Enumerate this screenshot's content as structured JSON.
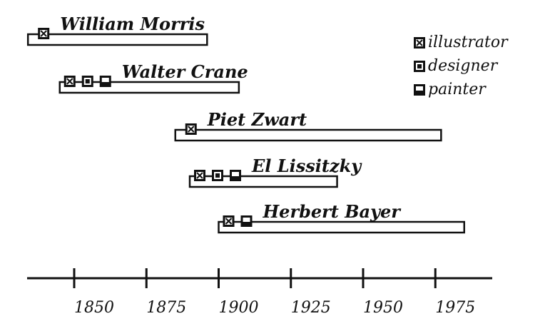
{
  "chart_data": {
    "type": "timeline",
    "axis": {
      "ticks": [
        1850,
        1875,
        1900,
        1925,
        1950,
        1975
      ],
      "range": [
        1834,
        1980
      ]
    },
    "legend": [
      {
        "key": "illustrator",
        "label": "illustrator"
      },
      {
        "key": "designer",
        "label": "designer"
      },
      {
        "key": "painter",
        "label": "painter"
      }
    ],
    "people": [
      {
        "name": "William Morris",
        "start": 1834,
        "end": 1896,
        "roles": [
          "illustrator"
        ]
      },
      {
        "name": "Walter Crane",
        "start": 1845,
        "end": 1907,
        "roles": [
          "illustrator",
          "designer",
          "painter"
        ]
      },
      {
        "name": "Piet Zwart",
        "start": 1885,
        "end": 1977,
        "roles": [
          "illustrator"
        ]
      },
      {
        "name": "El Lissitzky",
        "start": 1890,
        "end": 1941,
        "roles": [
          "illustrator",
          "designer",
          "painter"
        ]
      },
      {
        "name": "Herbert Bayer",
        "start": 1900,
        "end": 1985,
        "roles": [
          "illustrator",
          "painter"
        ]
      }
    ],
    "colors": {
      "ink": "#111111",
      "background": "#ffffff"
    }
  }
}
